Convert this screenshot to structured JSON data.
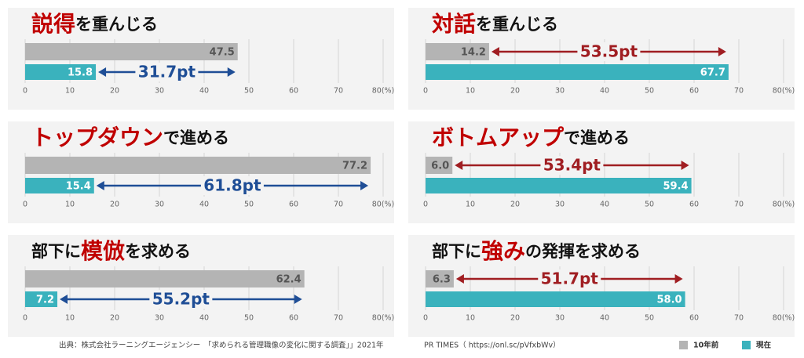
{
  "legend": {
    "series": [
      {
        "name": "10年前",
        "color": "#b4b4b4"
      },
      {
        "name": "現在",
        "color": "#3ab2bd"
      }
    ]
  },
  "chart_data": [
    {
      "type": "bar",
      "title": [
        {
          "text": "説得",
          "color": "#c00000"
        },
        {
          "text": "を重んじる"
        }
      ],
      "values": [
        47.5,
        15.8
      ],
      "diff": 31.7,
      "diff_label": "31.7pt",
      "diff_color": "#1f4e96",
      "xlim": [
        0,
        80
      ],
      "xticks": [
        0,
        10,
        20,
        30,
        40,
        50,
        60,
        70,
        {
          "value": 80,
          "label": "80(%)"
        }
      ]
    },
    {
      "type": "bar",
      "title": [
        {
          "text": "対話",
          "color": "#c00000"
        },
        {
          "text": "を重んじる"
        }
      ],
      "values": [
        14.2,
        67.7
      ],
      "diff": 53.5,
      "diff_label": "53.5pt",
      "diff_color": "#a01e22",
      "xlim": [
        0,
        80
      ],
      "xticks": [
        0,
        10,
        20,
        30,
        40,
        50,
        60,
        70,
        {
          "value": 80,
          "label": "80(%)"
        }
      ]
    },
    {
      "type": "bar",
      "title": [
        {
          "text": "トップダウン",
          "color": "#c00000"
        },
        {
          "text": "で進める"
        }
      ],
      "values": [
        77.2,
        15.4
      ],
      "diff": 61.8,
      "diff_label": "61.8pt",
      "diff_color": "#1f4e96",
      "xlim": [
        0,
        80
      ],
      "xticks": [
        0,
        10,
        20,
        30,
        40,
        50,
        60,
        70,
        {
          "value": 80,
          "label": "80(%)"
        }
      ]
    },
    {
      "type": "bar",
      "title": [
        {
          "text": "ボトムアップ",
          "color": "#c00000"
        },
        {
          "text": "で進める"
        }
      ],
      "values": [
        6.0,
        59.4
      ],
      "value_labels": [
        "6.0",
        "59.4"
      ],
      "diff": 53.4,
      "diff_label": "53.4pt",
      "diff_color": "#a01e22",
      "xlim": [
        0,
        80
      ],
      "xticks": [
        0,
        10,
        20,
        30,
        40,
        50,
        60,
        70,
        {
          "value": 80,
          "label": "80(%)"
        }
      ]
    },
    {
      "type": "bar",
      "title": [
        {
          "text": "部下に"
        },
        {
          "text": "模倣",
          "color": "#c00000"
        },
        {
          "text": "を求める"
        }
      ],
      "values": [
        62.4,
        7.2
      ],
      "diff": 55.2,
      "diff_label": "55.2pt",
      "diff_color": "#1f4e96",
      "xlim": [
        0,
        80
      ],
      "xticks": [
        0,
        10,
        20,
        30,
        40,
        50,
        60,
        70,
        {
          "value": 80,
          "label": "80(%)"
        }
      ]
    },
    {
      "type": "bar",
      "title": [
        {
          "text": "部下に"
        },
        {
          "text": "強み",
          "color": "#c00000"
        },
        {
          "text": "の発揮を求める"
        }
      ],
      "values": [
        6.3,
        58.0
      ],
      "value_labels": [
        "6.3",
        "58.0"
      ],
      "diff": 51.7,
      "diff_label": "51.7pt",
      "diff_color": "#a01e22",
      "xlim": [
        0,
        80
      ],
      "xticks": [
        0,
        10,
        20,
        30,
        40,
        50,
        60,
        70,
        {
          "value": 80,
          "label": "80(%)"
        }
      ]
    }
  ],
  "source": "出典：株式会社ラーニングエージェンシー　「求められる管理職像の変化に関する調査」」2021年",
  "credit": "PR TIMES（ https://onl.sc/pVfxbWv）"
}
